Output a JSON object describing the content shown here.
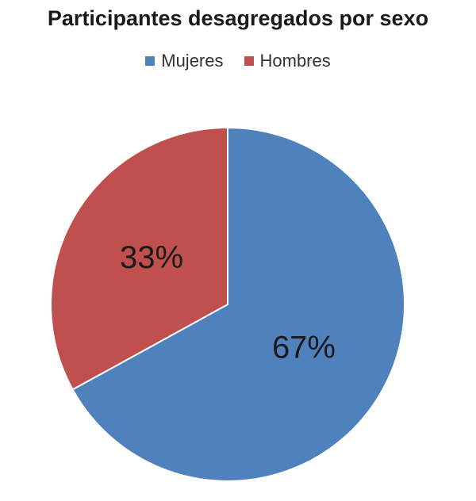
{
  "chart_data": {
    "type": "pie",
    "title": "Participantes desagregados por sexo",
    "legend_position": "top",
    "categories": [
      "Mujeres",
      "Hombres"
    ],
    "values": [
      67,
      33
    ],
    "labels": [
      "67%",
      "33%"
    ],
    "colors": [
      "#4f81bd",
      "#c0504d"
    ]
  }
}
